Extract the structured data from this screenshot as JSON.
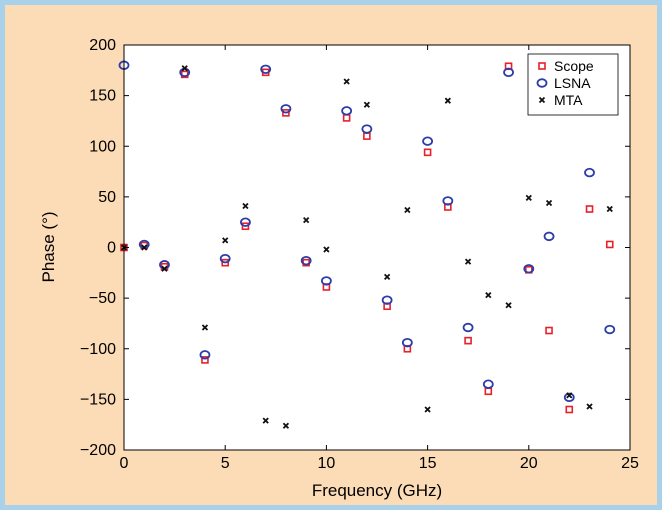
{
  "chart_data": {
    "type": "scatter",
    "xlabel": "Frequency (GHz)",
    "ylabel": "Phase (°)",
    "xlim": [
      0,
      25
    ],
    "ylim": [
      -200,
      200
    ],
    "xticks": [
      0,
      5,
      10,
      15,
      20,
      25
    ],
    "yticks": [
      -200,
      -150,
      -100,
      -50,
      0,
      50,
      100,
      150,
      200
    ],
    "grid": false,
    "legend_position": "top-right",
    "series": [
      {
        "name": "Scope",
        "color": "#e8202a",
        "marker": "square",
        "x": [
          0,
          1,
          2,
          3,
          4,
          5,
          6,
          7,
          8,
          9,
          10,
          11,
          12,
          13,
          14,
          15,
          16,
          17,
          18,
          19,
          20,
          21,
          22,
          23,
          24
        ],
        "y": [
          0,
          2,
          -19,
          171,
          -111,
          -15,
          21,
          173,
          133,
          -15,
          -39,
          128,
          110,
          -58,
          -100,
          94,
          40,
          -92,
          -142,
          179,
          -22,
          -82,
          -160,
          38,
          3
        ]
      },
      {
        "name": "LSNA",
        "color": "#2b3da8",
        "marker": "circle",
        "x": [
          0,
          1,
          2,
          3,
          4,
          5,
          6,
          7,
          8,
          9,
          10,
          11,
          12,
          13,
          14,
          15,
          16,
          17,
          18,
          19,
          20,
          21,
          22,
          23,
          24
        ],
        "y": [
          180,
          3,
          -17,
          173,
          -106,
          -11,
          25,
          176,
          137,
          -13,
          -33,
          135,
          117,
          -52,
          -94,
          105,
          46,
          -79,
          -135,
          173,
          -21,
          11,
          -148,
          74,
          -81
        ]
      },
      {
        "name": "MTA",
        "color": "#111111",
        "marker": "x",
        "x": [
          0,
          1,
          2,
          3,
          4,
          5,
          6,
          7,
          8,
          9,
          10,
          11,
          12,
          13,
          14,
          15,
          16,
          17,
          18,
          19,
          20,
          21,
          22,
          23,
          24
        ],
        "y": [
          0,
          0,
          -21,
          177,
          -79,
          7,
          41,
          -171,
          -176,
          27,
          -2,
          164,
          141,
          -29,
          37,
          -160,
          145,
          -14,
          -47,
          -57,
          49,
          44,
          -146,
          -157,
          38
        ]
      }
    ]
  }
}
